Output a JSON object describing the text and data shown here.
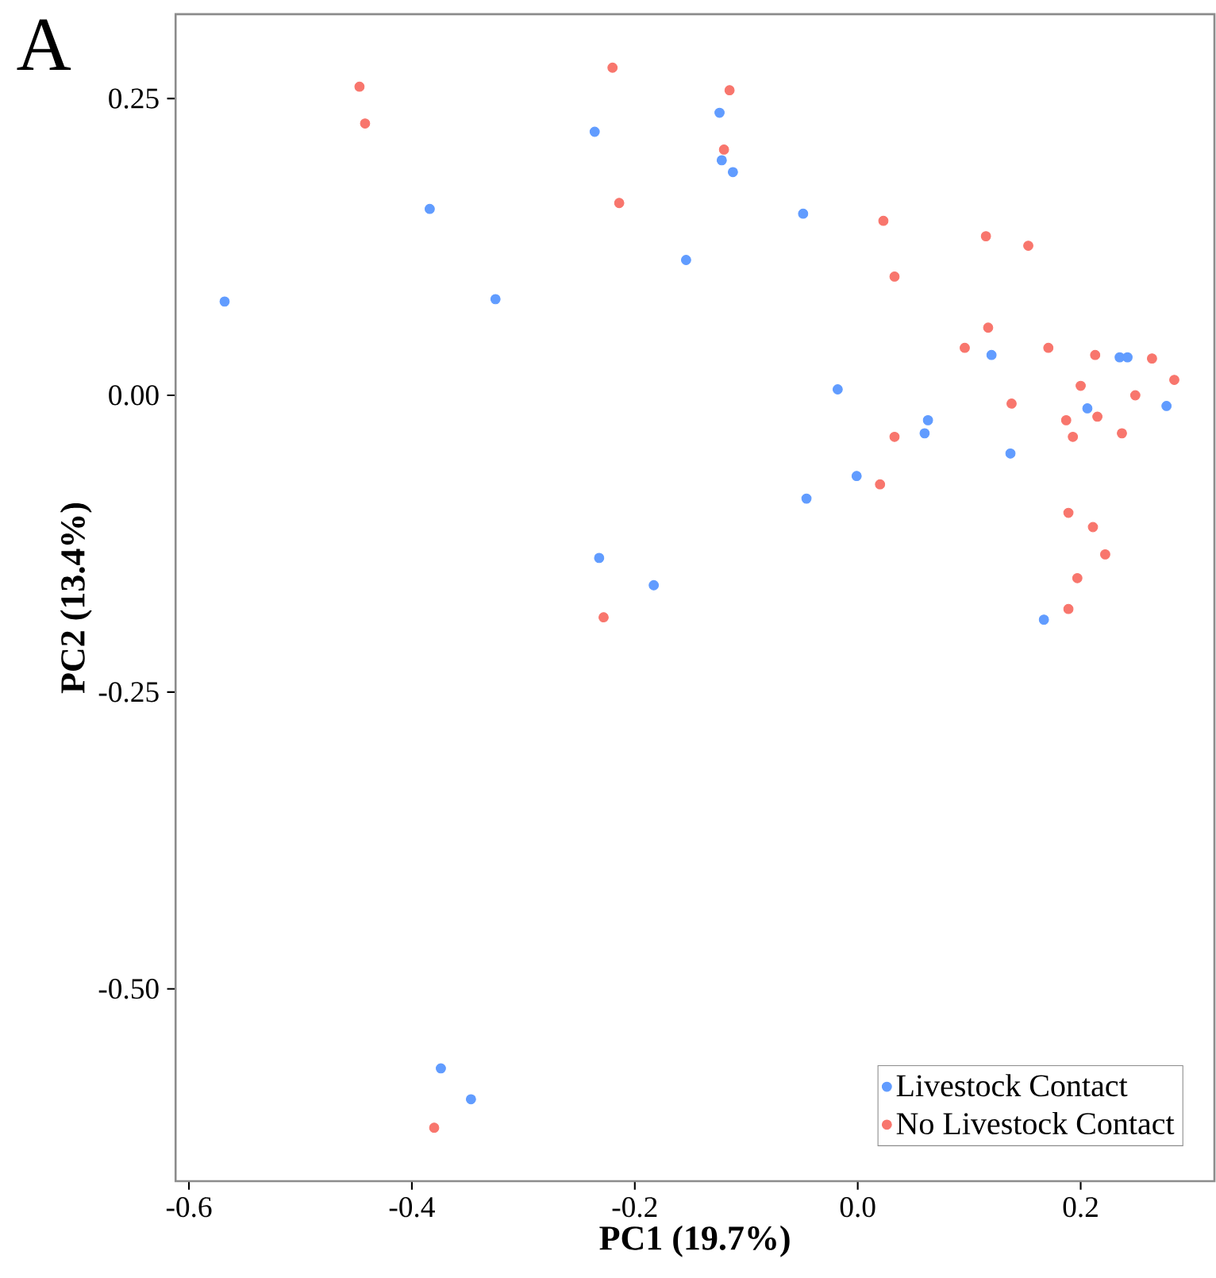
{
  "chart_data": {
    "type": "scatter",
    "xlabel": "PC1 (19.7%)",
    "ylabel": "PC2 (13.4%)",
    "annotations": [
      "A"
    ],
    "xlim": [
      -0.612,
      0.32
    ],
    "ylim": [
      -0.662,
      0.321
    ],
    "xticks": [
      -0.6,
      -0.4,
      -0.2,
      {
        "value": 0,
        "label": "0.0"
      },
      0.2
    ],
    "yticks": [
      {
        "value": -0.5,
        "label": "-0.50"
      },
      -0.25,
      {
        "value": 0,
        "label": "0.00"
      },
      0.25
    ],
    "grid": false,
    "legend": "bottom right",
    "marker": "circle",
    "series": [
      {
        "name": "Livestock Contact",
        "color": "#619cff",
        "x": [
          -0.124,
          -0.236,
          -0.122,
          -0.112,
          -0.384,
          -0.154,
          -0.568,
          -0.325,
          -0.232,
          -0.183,
          -0.374,
          -0.347,
          -0.049,
          0.12,
          0.235,
          0.242,
          -0.018,
          0.206,
          0.277,
          0.063,
          0.06,
          0.137,
          -0.001,
          -0.046,
          0.167
        ],
        "values": [
          0.238,
          0.222,
          0.198,
          0.188,
          0.157,
          0.114,
          0.079,
          0.081,
          -0.137,
          -0.16,
          -0.567,
          -0.593,
          0.153,
          0.034,
          0.032,
          0.032,
          0.005,
          -0.011,
          -0.009,
          -0.021,
          -0.032,
          -0.049,
          -0.068,
          -0.087,
          -0.189
        ]
      },
      {
        "name": "No Livestock Contact",
        "color": "#f8766d",
        "x": [
          -0.447,
          -0.442,
          -0.22,
          -0.115,
          -0.12,
          -0.214,
          -0.228,
          -0.38,
          0.023,
          0.115,
          0.153,
          0.033,
          0.117,
          0.096,
          0.171,
          0.213,
          0.264,
          0.284,
          0.2,
          0.249,
          0.138,
          0.215,
          0.187,
          0.033,
          0.193,
          0.237,
          0.02,
          0.189,
          0.211,
          0.222,
          0.197,
          0.189
        ],
        "values": [
          0.26,
          0.229,
          0.276,
          0.257,
          0.207,
          0.162,
          -0.187,
          -0.617,
          0.147,
          0.134,
          0.126,
          0.1,
          0.057,
          0.04,
          0.04,
          0.034,
          0.031,
          0.013,
          0.008,
          0.0,
          -0.007,
          -0.018,
          -0.021,
          -0.035,
          -0.035,
          -0.032,
          -0.075,
          -0.099,
          -0.111,
          -0.134,
          -0.154,
          -0.18
        ]
      }
    ]
  }
}
